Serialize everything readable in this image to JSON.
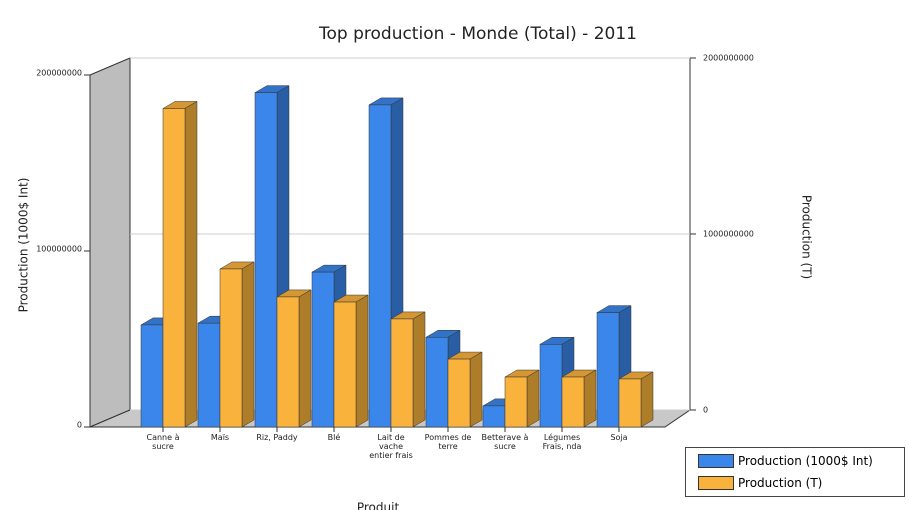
{
  "chart_data": {
    "type": "bar3d",
    "title": "Top production - Monde   (Total) - 2011",
    "xlabel": "Produit",
    "ylabel": "Production (1000$ Int)",
    "y2label": "Production (T)",
    "categories": [
      "Canne à sucre",
      "Maïs",
      "Riz, Paddy",
      "Blé",
      "Lait de vache entier frais",
      "Pommes de terre",
      "Betterave à sucre",
      "Légumes Frais, nda",
      "Soja"
    ],
    "series": [
      {
        "name": "Production (1000$ Int)",
        "color": "#3b86ea",
        "values": [
          58000000,
          59000000,
          190000000,
          88000000,
          183000000,
          51000000,
          12000000,
          47000000,
          65000000
        ]
      },
      {
        "name": "Production (T)",
        "color": "#f9b23c",
        "axis": "y2",
        "values": [
          1810000000,
          898000000,
          739000000,
          710000000,
          614000000,
          386000000,
          284000000,
          284000000,
          273000000
        ]
      }
    ],
    "ylim": [
      0,
      200000000
    ],
    "yticks": [
      0,
      100000000,
      200000000
    ],
    "y2lim": [
      0,
      2000000000
    ],
    "y2ticks": [
      0,
      1000000000,
      2000000000
    ],
    "grid": true
  }
}
